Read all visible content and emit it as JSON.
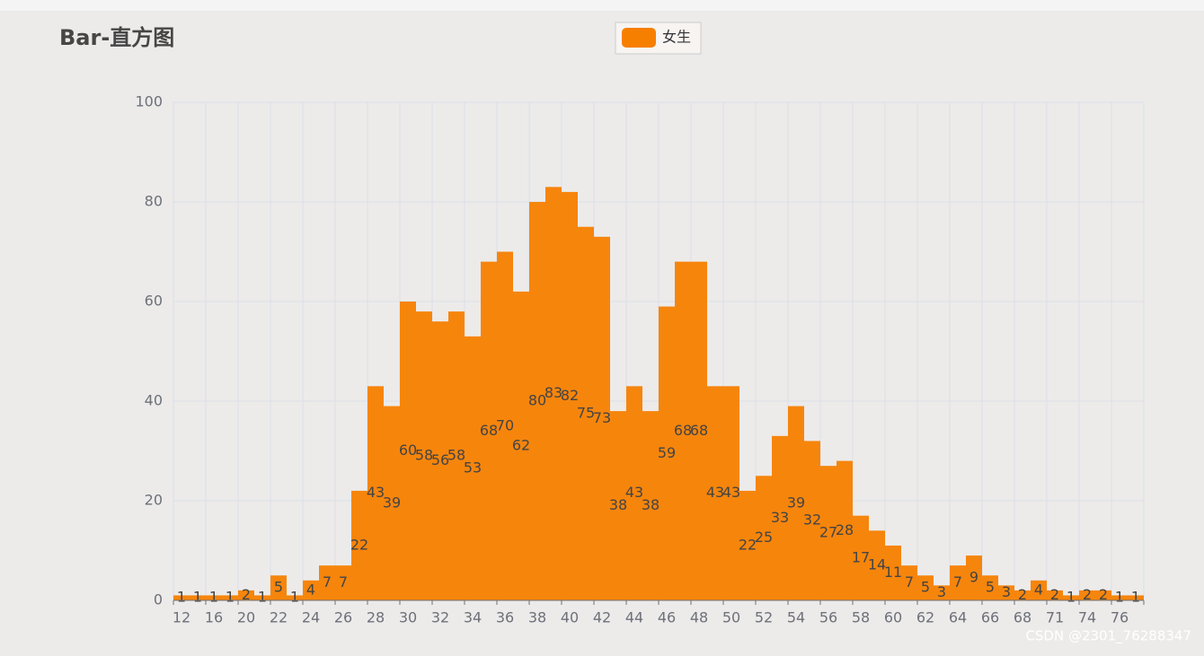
{
  "chart_data": {
    "type": "bar",
    "title": "Bar-直方图",
    "categories": [
      12,
      null,
      16,
      null,
      20,
      null,
      22,
      null,
      24,
      null,
      26,
      null,
      28,
      null,
      30,
      null,
      32,
      null,
      34,
      null,
      36,
      null,
      38,
      null,
      40,
      null,
      42,
      null,
      44,
      null,
      46,
      null,
      48,
      null,
      50,
      null,
      52,
      null,
      54,
      null,
      56,
      null,
      58,
      null,
      60,
      null,
      62,
      null,
      64,
      null,
      66,
      null,
      68,
      null,
      71,
      null,
      74,
      null,
      76,
      null
    ],
    "series": [
      {
        "name": "女生",
        "color": "#f77f00",
        "values": [
          1,
          1,
          1,
          1,
          2,
          1,
          5,
          1,
          4,
          7,
          7,
          22,
          43,
          39,
          60,
          58,
          56,
          58,
          53,
          68,
          70,
          62,
          80,
          83,
          82,
          75,
          73,
          38,
          43,
          38,
          59,
          68,
          68,
          43,
          43,
          22,
          25,
          33,
          39,
          32,
          27,
          28,
          17,
          14,
          11,
          7,
          5,
          3,
          7,
          9,
          5,
          3,
          2,
          4,
          2,
          1,
          2,
          2,
          1,
          1
        ]
      }
    ],
    "ylim": [
      0,
      100
    ],
    "yticks": [
      0,
      20,
      40,
      60,
      80,
      100
    ],
    "grid": true,
    "legend": "top",
    "watermark": "CSDN @2301_76288347"
  }
}
